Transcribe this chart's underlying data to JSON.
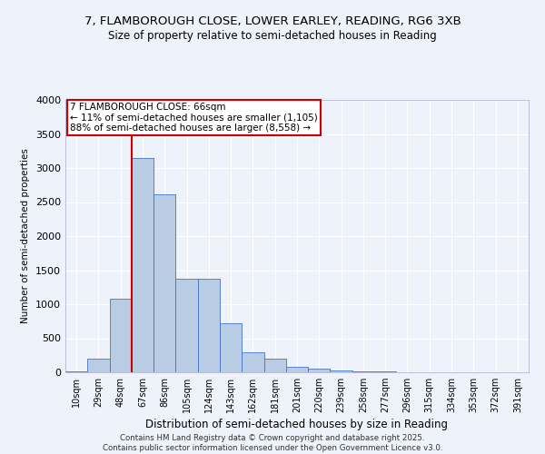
{
  "title_line1": "7, FLAMBOROUGH CLOSE, LOWER EARLEY, READING, RG6 3XB",
  "title_line2": "Size of property relative to semi-detached houses in Reading",
  "xlabel": "Distribution of semi-detached houses by size in Reading",
  "ylabel": "Number of semi-detached properties",
  "categories": [
    "10sqm",
    "29sqm",
    "48sqm",
    "67sqm",
    "86sqm",
    "105sqm",
    "124sqm",
    "143sqm",
    "162sqm",
    "181sqm",
    "201sqm",
    "220sqm",
    "239sqm",
    "258sqm",
    "277sqm",
    "296sqm",
    "315sqm",
    "334sqm",
    "353sqm",
    "372sqm",
    "391sqm"
  ],
  "values": [
    15,
    195,
    1075,
    3150,
    2620,
    1380,
    1380,
    720,
    295,
    195,
    85,
    55,
    30,
    20,
    10,
    5,
    5,
    3,
    2,
    1,
    1
  ],
  "bar_color": "#b8cce4",
  "bar_edge_color": "#4472c4",
  "property_line_index": 3,
  "annotation_title": "7 FLAMBOROUGH CLOSE: 66sqm",
  "annotation_smaller": "← 11% of semi-detached houses are smaller (1,105)",
  "annotation_larger": "88% of semi-detached houses are larger (8,558) →",
  "annotation_box_color": "#ffffff",
  "annotation_box_edge": "#cc0000",
  "red_line_color": "#cc0000",
  "footer1": "Contains HM Land Registry data © Crown copyright and database right 2025.",
  "footer2": "Contains public sector information licensed under the Open Government Licence v3.0.",
  "ylim": [
    0,
    4000
  ],
  "yticks": [
    0,
    500,
    1000,
    1500,
    2000,
    2500,
    3000,
    3500,
    4000
  ],
  "background_color": "#eef2fa",
  "grid_color": "#ffffff"
}
